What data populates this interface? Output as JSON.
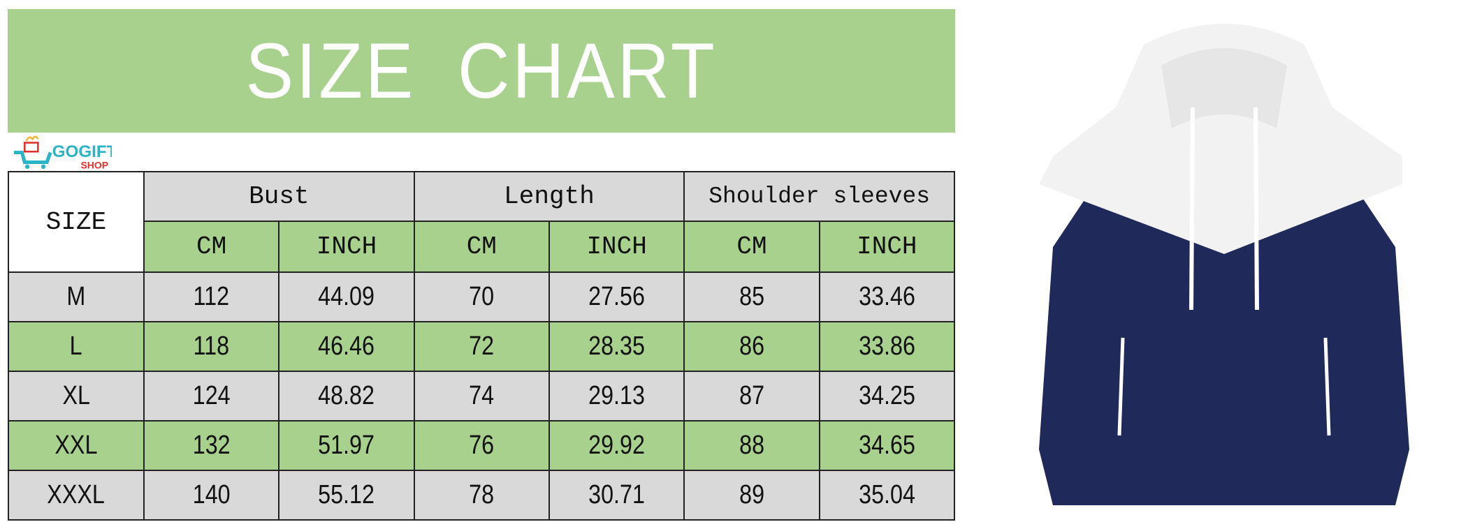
{
  "title": "SIZE CHART",
  "colors": {
    "banner": "#a9d18e",
    "row_gray": "#d9d9d9",
    "row_green": "#a9d18e",
    "hoodie_navy": "#1f2a5a",
    "hoodie_white": "#f2f2f2",
    "logo_teal": "#2bb3c8",
    "logo_red": "#e0312b"
  },
  "table": {
    "size_header": "SIZE",
    "groups": [
      "Bust",
      "Length",
      "Shoulder sleeves"
    ],
    "units": [
      "CM",
      "INCH",
      "CM",
      "INCH",
      "CM",
      "INCH"
    ],
    "rows": [
      {
        "size": "M",
        "values": [
          "112",
          "44.09",
          "70",
          "27.56",
          "85",
          "33.46"
        ]
      },
      {
        "size": "L",
        "values": [
          "118",
          "46.46",
          "72",
          "28.35",
          "86",
          "33.86"
        ]
      },
      {
        "size": "XL",
        "values": [
          "124",
          "48.82",
          "74",
          "29.13",
          "87",
          "34.25"
        ]
      },
      {
        "size": "XXL",
        "values": [
          "132",
          "51.97",
          "76",
          "29.92",
          "88",
          "34.65"
        ]
      },
      {
        "size": "XXXL",
        "values": [
          "140",
          "55.12",
          "78",
          "30.71",
          "89",
          "35.04"
        ]
      }
    ]
  },
  "watermark": {
    "brand": "GOGIFT",
    "sub": "SHOP"
  }
}
